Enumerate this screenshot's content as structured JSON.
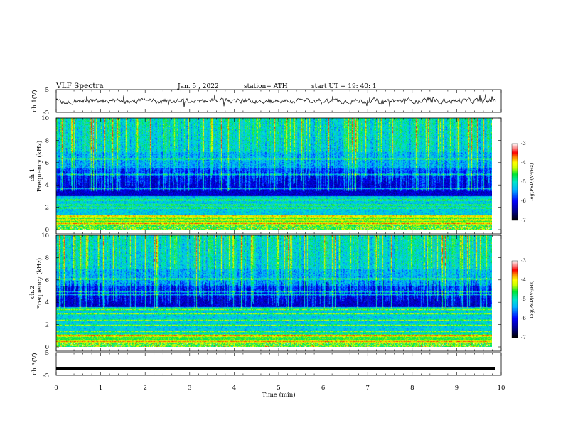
{
  "header": {
    "title": "VLF  Spectra",
    "date": "Jan.  5  , 2022",
    "station": "station= ATH",
    "start_ut": "start  UT  =    19: 40: 1"
  },
  "chart_data": [
    {
      "type": "line",
      "name": "ch.1 waveform",
      "ylabel": "ch.1(V)",
      "ylim": [
        -5,
        5
      ],
      "yticks": [
        "5",
        "-5"
      ],
      "xlim": [
        0,
        10
      ],
      "baseline": 0
    },
    {
      "type": "heatmap",
      "name": "ch.1 spectrogram",
      "ylabel_line1": "ch.1",
      "ylabel_line2": "Frequency (kHz)",
      "ylim": [
        0,
        10
      ],
      "yticks": [
        "0",
        "2",
        "4",
        "6",
        "8",
        "10"
      ],
      "xlim": [
        0,
        9.8
      ],
      "colorbar": {
        "label": "log(PSD)(V²/Hz)",
        "range": [
          -7,
          -3
        ],
        "ticks": [
          "-3",
          "-4",
          "-5",
          "-6",
          "-7"
        ]
      }
    },
    {
      "type": "heatmap",
      "name": "ch.2 spectrogram",
      "ylabel_line1": "ch.2",
      "ylabel_line2": "Frequency (kHz)",
      "ylim": [
        0,
        10
      ],
      "yticks": [
        "0",
        "2",
        "4",
        "6",
        "8",
        "10"
      ],
      "xlim": [
        0,
        9.8
      ],
      "colorbar": {
        "label": "log(PSD)(V²/Hz)",
        "range": [
          -7,
          -3
        ],
        "ticks": [
          "-3",
          "-4",
          "-5",
          "-6",
          "-7"
        ]
      }
    },
    {
      "type": "line",
      "name": "ch.3 waveform",
      "ylabel": "ch.3(V)",
      "ylim": [
        -5,
        5
      ],
      "yticks": [
        "5",
        "-5"
      ],
      "xlim": [
        0,
        10
      ],
      "baseline": -2
    }
  ],
  "xaxis": {
    "label": "Time  (min)",
    "range": [
      0,
      10
    ],
    "ticks": [
      "0",
      "1",
      "2",
      "3",
      "4",
      "5",
      "6",
      "7",
      "8",
      "9",
      "10"
    ]
  },
  "colors": {
    "axis": "#000000",
    "background": "#ffffff",
    "colormap": [
      "#000000",
      "#00008b",
      "#0000ff",
      "#00b4ff",
      "#00e6c8",
      "#00e632",
      "#c8ff00",
      "#ffff00",
      "#ff8c00",
      "#ff0000",
      "#ffffff"
    ]
  }
}
